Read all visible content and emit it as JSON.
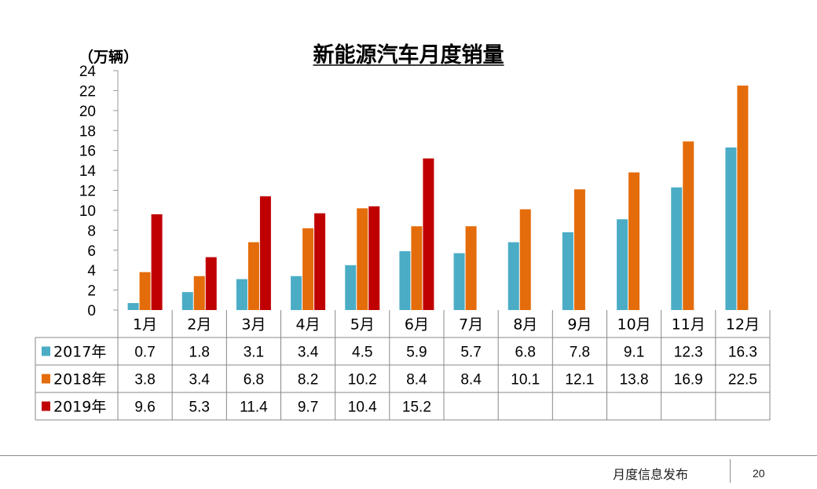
{
  "chart_data": {
    "type": "bar",
    "title": "新能源汽车月度销量",
    "ylabel": "（万辆）",
    "ylim": [
      0,
      24
    ],
    "yticks": [
      0,
      2,
      4,
      6,
      8,
      10,
      12,
      14,
      16,
      18,
      20,
      22,
      24
    ],
    "categories": [
      "1月",
      "2月",
      "3月",
      "4月",
      "5月",
      "6月",
      "7月",
      "8月",
      "9月",
      "10月",
      "11月",
      "12月"
    ],
    "grid": false,
    "legend": "data-table",
    "series": [
      {
        "name": "2017年",
        "color": "#4bacc6",
        "values": [
          0.7,
          1.8,
          3.1,
          3.4,
          4.5,
          5.9,
          5.7,
          6.8,
          7.8,
          9.1,
          12.3,
          16.3
        ]
      },
      {
        "name": "2018年",
        "color": "#e46c0a",
        "values": [
          3.8,
          3.4,
          6.8,
          8.2,
          10.2,
          8.4,
          8.4,
          10.1,
          12.1,
          13.8,
          16.9,
          22.5
        ]
      },
      {
        "name": "2019年",
        "color": "#c00000",
        "values": [
          9.6,
          5.3,
          11.4,
          9.7,
          10.4,
          15.2,
          null,
          null,
          null,
          null,
          null,
          null
        ]
      }
    ]
  },
  "footer": {
    "label": "月度信息发布",
    "page": "20"
  }
}
